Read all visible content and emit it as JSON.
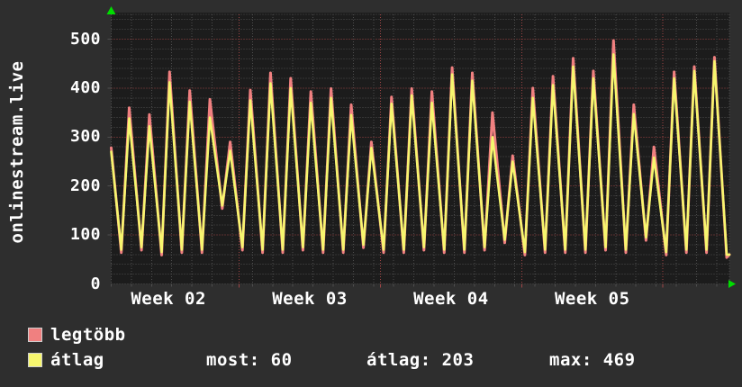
{
  "graph": {
    "vertical_title": "onlinestream.live"
  },
  "colors": {
    "background": "#2e2e2e",
    "plot_background": "#1c1c1c",
    "grid_minor": "#4d4d4d",
    "grid_major_red": "#9e4545",
    "series_max_pink": "#f08080",
    "series_avg_yellow": "#f6f66e",
    "text": "#ffffff",
    "axis_arrow_green": "#00dd00"
  },
  "legend": {
    "items": [
      {
        "label": "legtöbb",
        "color": "#f08080"
      },
      {
        "label": "átlag",
        "color": "#f6f66e"
      }
    ]
  },
  "stats": [
    {
      "label": "most",
      "value": "60",
      "text": "most: 60"
    },
    {
      "label": "átlag",
      "value": "203",
      "text": "átlag: 203"
    },
    {
      "label": "max",
      "value": "469",
      "text": "max: 469"
    }
  ],
  "y_axis": {
    "ticks": [
      0,
      100,
      200,
      300,
      400,
      500
    ]
  },
  "x_axis": {
    "ticks": [
      "Week 02",
      "Week 03",
      "Week 04",
      "Week 05"
    ]
  },
  "chart_data": {
    "type": "line",
    "title": "onlinestream.live",
    "x_unit": "days (about 4.5 weeks of daily cycles)",
    "x_tick_labels": [
      "Week 02",
      "Week 03",
      "Week 04",
      "Week 05"
    ],
    "week_boundaries_day": [
      6.34,
      13.34,
      20.34,
      27.34
    ],
    "ylim": [
      0,
      550
    ],
    "y_ticks": [
      0,
      100,
      200,
      300,
      400,
      500
    ],
    "grid": "dotted minor grid; red dotted major lines every 100 units and at week boundaries",
    "legend_position": "bottom-left",
    "series": [
      {
        "name": "legtöbb",
        "color": "#f08080",
        "daily_peaks": [
          360,
          346,
          433,
          395,
          377,
          290,
          396,
          431,
          420,
          393,
          399,
          366,
          290,
          382,
          399,
          393,
          442,
          431,
          350,
          262,
          400,
          424,
          461,
          435,
          497,
          366,
          280,
          433,
          444,
          463
        ],
        "start_value": 278,
        "end_value": 60
      },
      {
        "name": "átlag",
        "color": "#f6f66e",
        "daily_peaks": [
          338,
          322,
          412,
          372,
          340,
          272,
          375,
          410,
          400,
          370,
          380,
          345,
          278,
          368,
          385,
          370,
          428,
          415,
          300,
          250,
          380,
          406,
          444,
          420,
          469,
          347,
          258,
          420,
          435,
          455
        ],
        "start_value": 270,
        "end_value": 60
      }
    ],
    "daily_troughs": [
      70,
      75,
      65,
      70,
      70,
      160,
      75,
      70,
      70,
      75,
      70,
      70,
      80,
      70,
      70,
      75,
      70,
      70,
      75,
      90,
      65,
      70,
      70,
      70,
      75,
      70,
      95,
      65,
      70,
      70,
      60
    ],
    "summary": {
      "most": 60,
      "atlag": 203,
      "max": 469
    }
  }
}
